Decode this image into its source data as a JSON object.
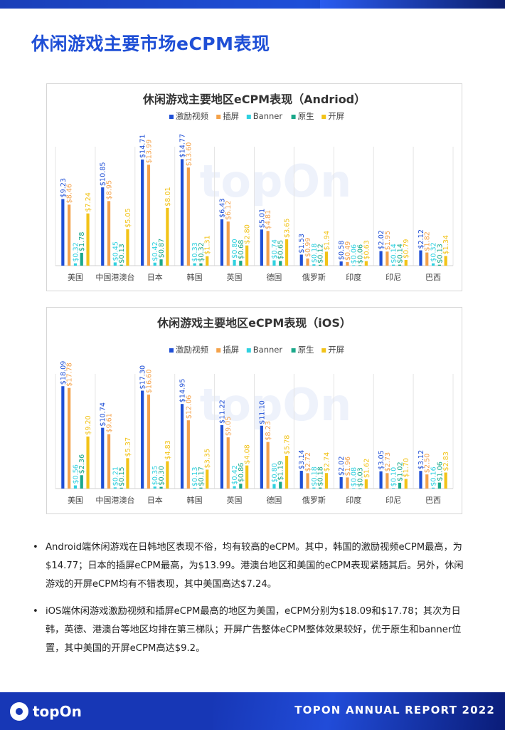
{
  "page_title": "休闲游戏主要市场eCPM表现",
  "footer": {
    "logo_text": "topOn",
    "report_title": "TOPON ANNUAL REPORT 2022"
  },
  "bullets": [
    "Android端休闲游戏在日韩地区表现不俗，均有较高的eCPM。其中，韩国的激励视频eCPM最高，为$14.77；日本的插屏eCPM最高，为$13.99。港澳台地区和美国的eCPM表现紧随其后。另外，休闲游戏的开屏eCPM均有不错表现，其中美国高达$7.24。",
    "iOS端休闲游戏激励视频和插屏eCPM最高的地区为美国，eCPM分别为$18.09和$17.78；其次为日韩，英德、港澳台等地区均排在第三梯队；开屏广告整体eCPM整体效果较好，优于原生和banner位置，其中美国的开屏eCPM高达$9.2。"
  ],
  "bullet_marker": "•",
  "watermark": "topOn",
  "colors": {
    "激励视频": "#1f4fd6",
    "插屏": "#f4a24a",
    "Banner": "#2fd1e0",
    "原生": "#1aa88a",
    "开屏": "#f2c318"
  },
  "chart_data": [
    {
      "type": "bar",
      "title": "休闲游戏主要地区eCPM表现（Andriod）",
      "categories": [
        "美国",
        "中国港澳台",
        "日本",
        "韩国",
        "英国",
        "德国",
        "俄罗斯",
        "印度",
        "印尼",
        "巴西"
      ],
      "series": [
        {
          "name": "激励视频",
          "values": [
            9.23,
            10.85,
            14.71,
            14.77,
            6.43,
            5.01,
            1.53,
            0.58,
            2.02,
            2.12
          ],
          "labels": [
            "$9.23",
            "$10.85",
            "$14.71",
            "$14.77",
            "$6.43",
            "$5.01",
            "$1.53",
            "$0.58",
            "$2.02",
            "$2.12"
          ]
        },
        {
          "name": "插屏",
          "values": [
            8.46,
            8.95,
            13.99,
            13.6,
            6.12,
            4.81,
            0.99,
            0.49,
            1.95,
            1.82
          ],
          "labels": [
            "$8.46",
            "$8.95",
            "$13.99",
            "$13.60",
            "$6.12",
            "$4.81",
            "$0.99",
            "$0.49",
            "$1.95",
            "$1.82"
          ]
        },
        {
          "name": "Banner",
          "values": [
            0.32,
            0.45,
            0.42,
            0.33,
            0.8,
            0.74,
            0.18,
            0.06,
            0.14,
            0.32
          ],
          "labels": [
            "$0.32",
            "$0.45",
            "$0.42",
            "$0.33",
            "$0.80",
            "$0.74",
            "$0.18",
            "$0.06",
            "$0.14",
            "$0.32"
          ]
        },
        {
          "name": "原生",
          "values": [
            1.78,
            0.13,
            0.87,
            0.32,
            0.68,
            0.65,
            0.12,
            0.06,
            0.14,
            0.13
          ],
          "labels": [
            "$1.78",
            "$0.13",
            "$0.87",
            "$0.32",
            "$0.68",
            "$0.65",
            "$0.12",
            "$0.06",
            "$0.14",
            "$0.13"
          ]
        },
        {
          "name": "开屏",
          "values": [
            7.24,
            5.05,
            8.01,
            1.31,
            2.8,
            3.65,
            1.94,
            0.63,
            0.79,
            1.34
          ],
          "labels": [
            "$7.24",
            "$5.05",
            "$8.01",
            "$1.31",
            "$2.80",
            "$3.65",
            "$1.94",
            "$0.63",
            "$0.79",
            "$1.34"
          ]
        }
      ],
      "ylim": [
        0,
        15.5
      ],
      "legend": "top"
    },
    {
      "type": "bar",
      "title": "休闲游戏主要地区eCPM表现（iOS）",
      "categories": [
        "美国",
        "中国港澳台",
        "日本",
        "韩国",
        "英国",
        "德国",
        "俄罗斯",
        "印度",
        "印尼",
        "巴西"
      ],
      "series": [
        {
          "name": "激励视频",
          "values": [
            18.09,
            10.74,
            17.3,
            14.95,
            11.22,
            11.1,
            3.14,
            2.02,
            3.05,
            3.12
          ],
          "labels": [
            "$18.09",
            "$10.74",
            "$17.30",
            "$14.95",
            "$11.22",
            "$11.10",
            "$3.14",
            "$2.02",
            "$3.05",
            "$3.12"
          ]
        },
        {
          "name": "插屏",
          "values": [
            17.78,
            9.61,
            16.6,
            12.06,
            9.05,
            8.23,
            2.72,
            1.96,
            2.73,
            2.5
          ],
          "labels": [
            "$17.78",
            "$9.61",
            "$16.60",
            "$12.06",
            "$9.05",
            "$8.23",
            "$2.72",
            "$1.96",
            "$2.73",
            "$2.50"
          ]
        },
        {
          "name": "Banner",
          "values": [
            0.56,
            0.21,
            0.35,
            0.13,
            0.42,
            0.8,
            0.18,
            0.08,
            0.1,
            0.16
          ],
          "labels": [
            "$0.56",
            "$0.21",
            "$0.35",
            "$0.13",
            "$0.42",
            "$0.80",
            "$0.18",
            "$0.08",
            "$0.10",
            "$0.16"
          ]
        },
        {
          "name": "原生",
          "values": [
            2.36,
            0.15,
            0.3,
            0.17,
            0.86,
            1.19,
            0.18,
            0.03,
            1.02,
            1.06
          ],
          "labels": [
            "$2.36",
            "$0.15",
            "$0.30",
            "$0.17",
            "$0.86",
            "$1.19",
            "$0.18",
            "$0.03",
            "$1.02",
            "$1.06"
          ]
        },
        {
          "name": "开屏",
          "values": [
            9.2,
            5.37,
            4.83,
            3.35,
            4.08,
            5.78,
            2.74,
            1.62,
            1.7,
            2.83
          ],
          "labels": [
            "$9.20",
            "$5.37",
            "$4.83",
            "$3.35",
            "$4.08",
            "$5.78",
            "$2.74",
            "$1.62",
            "$1.70",
            "$2.83"
          ]
        }
      ],
      "ylim": [
        0,
        19
      ],
      "legend": "top"
    }
  ]
}
